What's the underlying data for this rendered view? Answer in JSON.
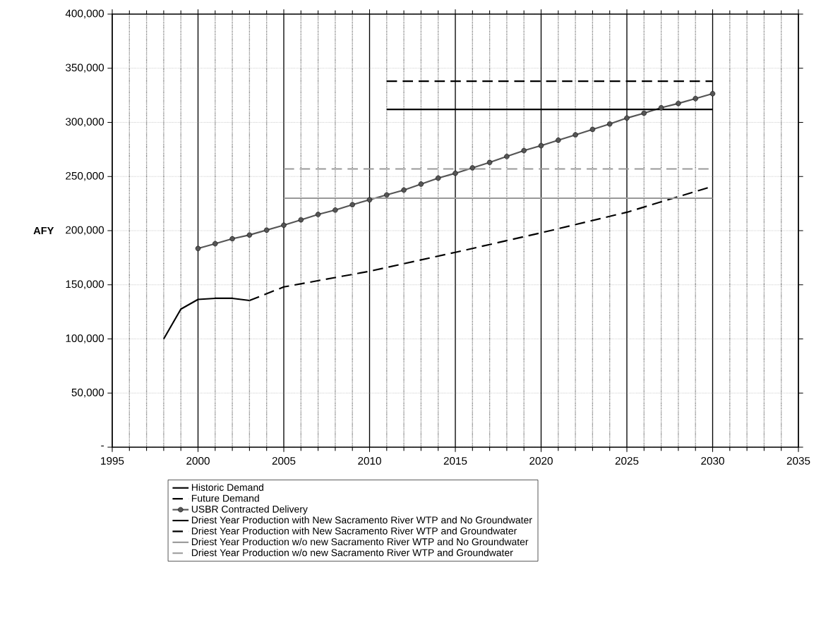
{
  "chart_data": {
    "type": "line",
    "ylabel": "AFY",
    "xlim": [
      1995,
      2035
    ],
    "ylim": [
      0,
      400000
    ],
    "xticks": [
      1995,
      {
        "value": 1996,
        "label": null
      },
      {
        "value": 1997,
        "label": null
      },
      {
        "value": 1998,
        "label": null
      },
      {
        "value": 1999,
        "label": null
      },
      2000,
      {
        "value": 2001,
        "label": null
      },
      {
        "value": 2002,
        "label": null
      },
      {
        "value": 2003,
        "label": null
      },
      {
        "value": 2004,
        "label": null
      },
      2005,
      {
        "value": 2006,
        "label": null
      },
      {
        "value": 2007,
        "label": null
      },
      {
        "value": 2008,
        "label": null
      },
      {
        "value": 2009,
        "label": null
      },
      2010,
      {
        "value": 2011,
        "label": null
      },
      {
        "value": 2012,
        "label": null
      },
      {
        "value": 2013,
        "label": null
      },
      {
        "value": 2014,
        "label": null
      },
      2015,
      {
        "value": 2016,
        "label": null
      },
      {
        "value": 2017,
        "label": null
      },
      {
        "value": 2018,
        "label": null
      },
      {
        "value": 2019,
        "label": null
      },
      2020,
      {
        "value": 2021,
        "label": null
      },
      {
        "value": 2022,
        "label": null
      },
      {
        "value": 2023,
        "label": null
      },
      {
        "value": 2024,
        "label": null
      },
      2025,
      {
        "value": 2026,
        "label": null
      },
      {
        "value": 2027,
        "label": null
      },
      {
        "value": 2028,
        "label": null
      },
      {
        "value": 2029,
        "label": null
      },
      2030,
      {
        "value": 2031,
        "label": null
      },
      {
        "value": 2032,
        "label": null
      },
      {
        "value": 2033,
        "label": null
      },
      {
        "value": 2034,
        "label": null
      },
      2035
    ],
    "yticks": [
      {
        "value": 0,
        "label": "-"
      },
      {
        "value": 50000,
        "label": "50,000"
      },
      {
        "value": 100000,
        "label": "100,000"
      },
      {
        "value": 150000,
        "label": "150,000"
      },
      {
        "value": 200000,
        "label": "200,000"
      },
      {
        "value": 250000,
        "label": "250,000"
      },
      {
        "value": 300000,
        "label": "300,000"
      },
      {
        "value": 350000,
        "label": "350,000"
      },
      {
        "value": 400000,
        "label": "400,000"
      }
    ],
    "grid": true,
    "legend": "bottom",
    "series": [
      {
        "name": "Historic Demand",
        "color": "#000000",
        "line_style": "solid",
        "marker": "none",
        "x": [
          1998,
          1999,
          2000,
          2001,
          2002,
          2003
        ],
        "values": [
          100000,
          127500,
          136500,
          137500,
          137500,
          135500
        ]
      },
      {
        "name": "Future Demand",
        "color": "#000000",
        "line_style": "dashed",
        "marker": "none",
        "x": [
          2003,
          2005,
          2010,
          2015,
          2020,
          2025,
          2030
        ],
        "values": [
          135500,
          148000,
          162500,
          180000,
          198000,
          217000,
          241000
        ]
      },
      {
        "name": "USBR Contracted Delivery",
        "color": "#555555",
        "line_style": "solid",
        "marker": "circle",
        "x": [
          2000,
          2001,
          2002,
          2003,
          2004,
          2005,
          2006,
          2007,
          2008,
          2009,
          2010,
          2011,
          2012,
          2013,
          2014,
          2015,
          2016,
          2017,
          2018,
          2019,
          2020,
          2021,
          2022,
          2023,
          2024,
          2025,
          2026,
          2027,
          2028,
          2029,
          2030
        ],
        "values": [
          183500,
          188000,
          192500,
          196000,
          200500,
          205000,
          210000,
          215000,
          219000,
          224000,
          228500,
          233000,
          237500,
          243000,
          248500,
          253000,
          258000,
          263000,
          268500,
          274000,
          278500,
          283500,
          288500,
          293500,
          298500,
          304000,
          308500,
          313500,
          317500,
          322000,
          326500
        ]
      },
      {
        "name": "Driest Year Production with New Sacramento River WTP and No Groundwater",
        "color": "#000000",
        "line_style": "solid",
        "marker": "none",
        "x": [
          2011,
          2030
        ],
        "values": [
          312000,
          312000
        ]
      },
      {
        "name": "Driest Year Production with New Sacramento River WTP and Groundwater",
        "color": "#000000",
        "line_style": "dashed",
        "marker": "none",
        "x": [
          2011,
          2030
        ],
        "values": [
          338000,
          338000
        ]
      },
      {
        "name": "Driest Year Production w/o new Sacramento River WTP and No Groundwater",
        "color": "#999999",
        "line_style": "solid",
        "marker": "none",
        "x": [
          2005,
          2030
        ],
        "values": [
          230000,
          230000
        ]
      },
      {
        "name": "Driest Year Production w/o new Sacramento River WTP and Groundwater",
        "color": "#999999",
        "line_style": "dashed",
        "marker": "none",
        "x": [
          2005,
          2030
        ],
        "values": [
          257000,
          257000
        ]
      }
    ]
  }
}
